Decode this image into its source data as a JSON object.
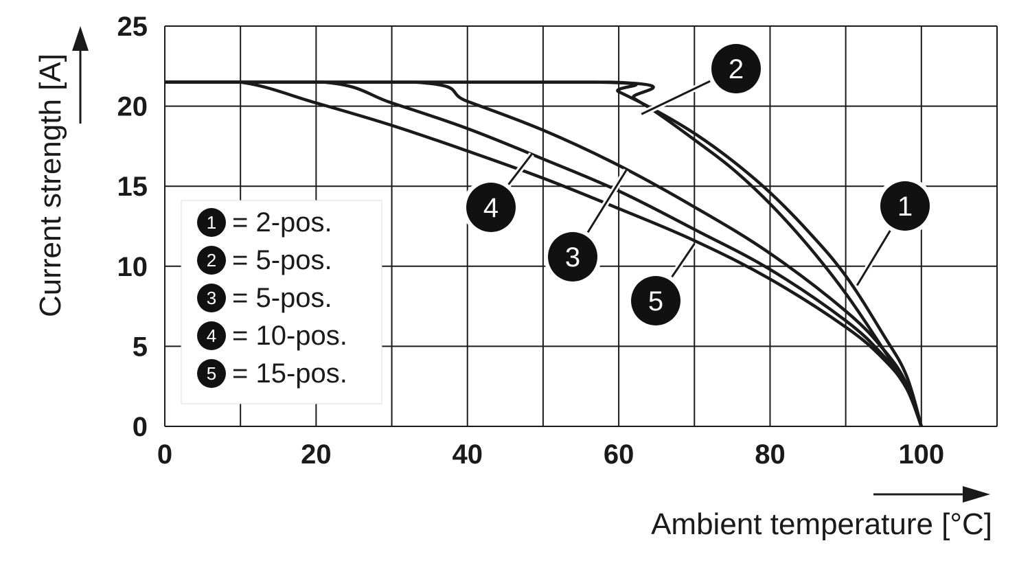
{
  "chart_data": {
    "type": "line",
    "xlabel": "Ambient temperature [°C]",
    "ylabel": "Current strength [A]",
    "xlim": [
      0,
      110
    ],
    "ylim": [
      0,
      25
    ],
    "x_ticks": [
      0,
      20,
      40,
      60,
      80,
      100
    ],
    "y_ticks": [
      0,
      5,
      10,
      15,
      20,
      25
    ],
    "grid": true,
    "grid_x_step": 10,
    "grid_y_step": 5,
    "legend_position": "left-middle",
    "series": [
      {
        "id": "1",
        "name": "2-pos.",
        "x": [
          0,
          57,
          60,
          65,
          70,
          75,
          80,
          85,
          90,
          95,
          98,
          100
        ],
        "y": [
          21.5,
          21.5,
          20.9,
          19.7,
          18.3,
          16.6,
          14.6,
          12.2,
          9.4,
          5.7,
          3.2,
          0
        ]
      },
      {
        "id": "2",
        "name": "5-pos.",
        "x": [
          0,
          59,
          62,
          65,
          70,
          75,
          80,
          85,
          90,
          95,
          98,
          100
        ],
        "y": [
          21.5,
          21.5,
          20.5,
          19.6,
          17.9,
          16.1,
          13.9,
          11.3,
          8.3,
          4.8,
          2.5,
          0
        ]
      },
      {
        "id": "3",
        "name": "5-pos.",
        "x": [
          0,
          33,
          40,
          50,
          60,
          70,
          80,
          90,
          95,
          98,
          100
        ],
        "y": [
          21.5,
          21.5,
          20.3,
          18.5,
          16.3,
          13.7,
          10.8,
          7.2,
          4.8,
          2.7,
          0
        ]
      },
      {
        "id": "4",
        "name": "10-pos.",
        "x": [
          0,
          21,
          30,
          40,
          50,
          60,
          70,
          80,
          90,
          95,
          98,
          100
        ],
        "y": [
          21.5,
          21.5,
          20.2,
          18.6,
          16.7,
          14.7,
          12.3,
          9.8,
          6.6,
          4.4,
          2.5,
          0
        ]
      },
      {
        "id": "5",
        "name": "15-pos.",
        "x": [
          0,
          10,
          20,
          30,
          40,
          50,
          60,
          70,
          80,
          90,
          95,
          98,
          100
        ],
        "y": [
          21.5,
          21.5,
          20.2,
          18.8,
          17.2,
          15.5,
          13.6,
          11.6,
          9.2,
          6.2,
          4.2,
          2.4,
          0
        ]
      }
    ],
    "markers": [
      {
        "id": "1",
        "label": "1",
        "pointer_x": 91.5,
        "pointer_y": 8.8
      },
      {
        "id": "2",
        "label": "2",
        "pointer_x": 63,
        "pointer_y": 19.5
      },
      {
        "id": "3",
        "label": "3",
        "pointer_x": 61,
        "pointer_y": 16
      },
      {
        "id": "4",
        "label": "4",
        "pointer_x": 48.5,
        "pointer_y": 17
      },
      {
        "id": "5",
        "label": "5",
        "pointer_x": 70,
        "pointer_y": 11.4
      }
    ],
    "legend": [
      {
        "num": "1",
        "text": "= 2-pos."
      },
      {
        "num": "2",
        "text": "= 5-pos."
      },
      {
        "num": "3",
        "text": "= 5-pos."
      },
      {
        "num": "4",
        "text": "= 10-pos."
      },
      {
        "num": "5",
        "text": "= 15-pos."
      }
    ]
  }
}
